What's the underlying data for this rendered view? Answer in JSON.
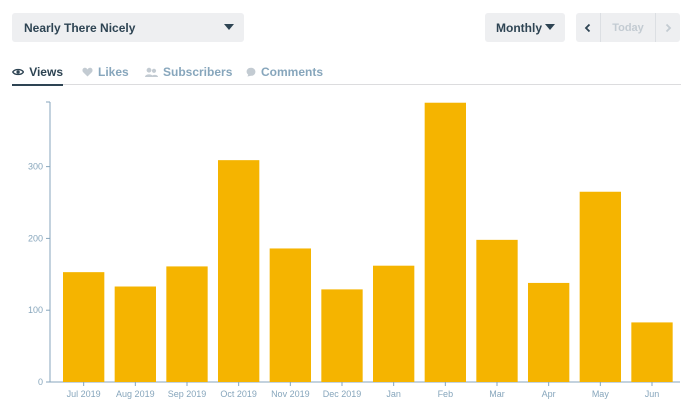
{
  "header": {
    "site_name": "Nearly There Nicely",
    "period_label": "Monthly",
    "today_label": "Today"
  },
  "tabs": [
    {
      "label": "Views",
      "icon": "eye-icon",
      "active": true
    },
    {
      "label": "Likes",
      "icon": "heart-icon",
      "active": false
    },
    {
      "label": "Subscribers",
      "icon": "subscribers-icon",
      "active": false
    },
    {
      "label": "Comments",
      "icon": "comment-icon",
      "active": false
    }
  ],
  "colors": {
    "bar": "#f5b400",
    "axis": "#87a6bc",
    "text_dark": "#2e4453"
  },
  "chart_data": {
    "type": "bar",
    "categories": [
      "Jul 2019",
      "Aug 2019",
      "Sep 2019",
      "Oct 2019",
      "Nov 2019",
      "Dec 2019",
      "Jan",
      "Feb",
      "Mar",
      "Apr",
      "May",
      "Jun"
    ],
    "values": [
      153,
      133,
      161,
      309,
      186,
      129,
      162,
      389,
      198,
      138,
      265,
      83
    ],
    "yticks": [
      0,
      100,
      200,
      300
    ],
    "ylim": [
      0,
      390
    ],
    "grid": false
  }
}
